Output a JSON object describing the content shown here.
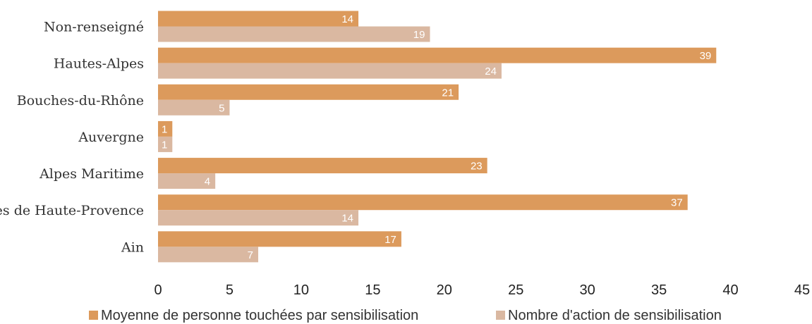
{
  "chart_data": {
    "type": "bar",
    "orientation": "horizontal",
    "categories": [
      "Non-renseigné",
      "Hautes-Alpes",
      "Bouches-du-Rhône",
      "Auvergne",
      "Alpes Maritime",
      "Alpes de Haute-Provence",
      "Ain"
    ],
    "series": [
      {
        "name": "Moyenne de personne touchées par sensibilisation",
        "color": "#dc9a5c",
        "values": [
          14,
          39,
          21,
          1,
          23,
          37,
          17
        ]
      },
      {
        "name": "Nombre d'action de sensibilisation",
        "color": "#dab8a1",
        "values": [
          19,
          24,
          5,
          1,
          4,
          14,
          7
        ]
      }
    ],
    "xlim": [
      0,
      45
    ],
    "xticks": [
      "0",
      "5",
      "10",
      "15",
      "20",
      "25",
      "30",
      "35",
      "40",
      "45"
    ],
    "grid": false,
    "legend_position": "bottom"
  }
}
